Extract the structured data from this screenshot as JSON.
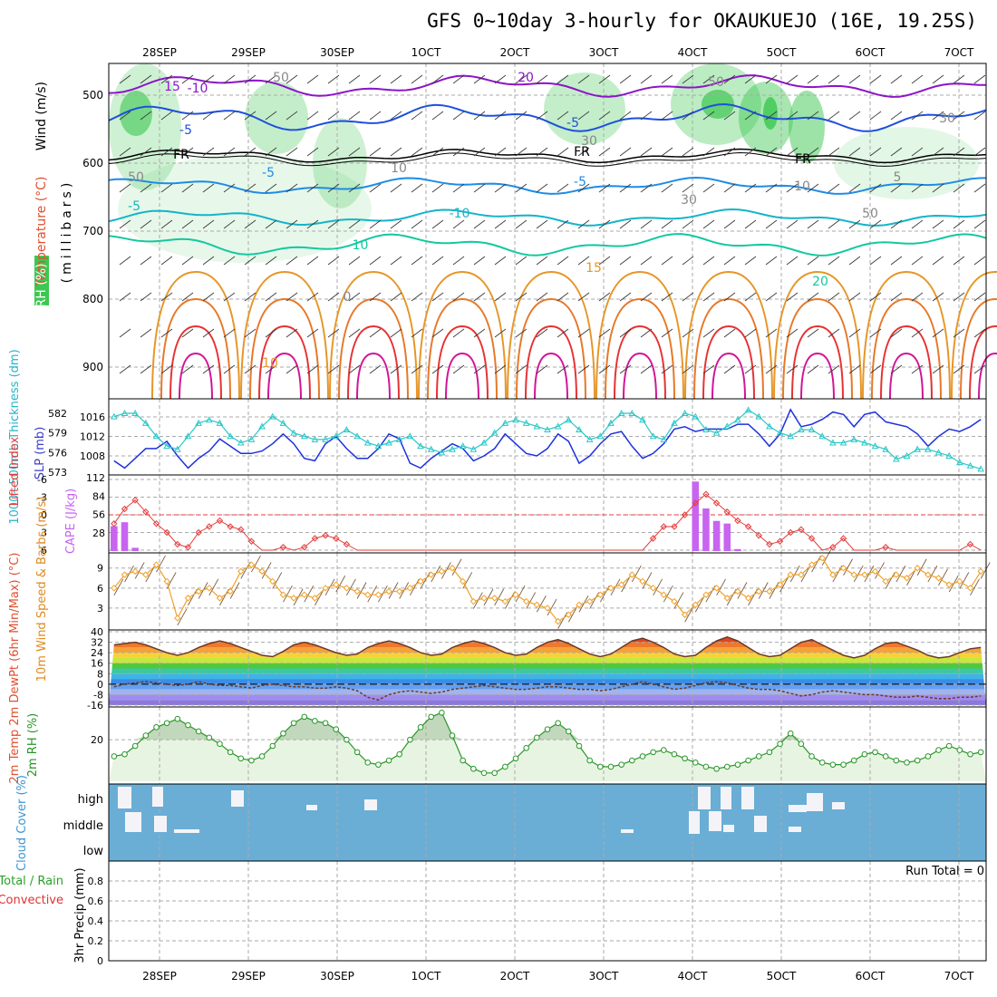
{
  "title": "GFS 0~10day 3-hourly for OKAUKUEJO (16E, 19.25S)",
  "dates": [
    "28SEP",
    "29SEP",
    "30SEP",
    "1OCT",
    "2OCT",
    "3OCT",
    "4OCT",
    "5OCT",
    "6OCT",
    "7OCT"
  ],
  "run_total": "Run Total = 0",
  "colors": {
    "rh_green": "#3cc850",
    "temp_purple": "#8c14c8",
    "temp_blue": "#1e50dc",
    "temp_cyan": "#14b4c8",
    "temp_teal": "#14c8a0",
    "temp_orange": "#e69628",
    "temp_red": "#e63232",
    "temp_magenta": "#d21496",
    "slp_blue": "#1e32dc",
    "thickness_cyan": "#28c8c8",
    "li_red": "#e63c3c",
    "cape_purple": "#c864f0",
    "wind_orange": "#f0a028",
    "rh2m_green": "#289628",
    "cloud_blue": "#6aaed6"
  },
  "chart_data": [
    {
      "panel": "upper-air cross-section",
      "type": "heatmap",
      "ylabel": "(millibars)",
      "side_labels": [
        "Wind (m/s)",
        "Temperature (°C)",
        "RH (%)"
      ],
      "yticks": [
        500,
        600,
        700,
        800,
        900
      ],
      "contour_labels": [
        "-10",
        "-5",
        "-5",
        "-5",
        "FR",
        "FR",
        "FR",
        "-5",
        "-5",
        "-10",
        "-10",
        "15",
        "10",
        "20",
        "20",
        "15",
        "10",
        "5",
        "50",
        "50",
        "30",
        "50",
        "30",
        "30",
        "10",
        "50",
        "0"
      ]
    },
    {
      "panel": "SLP and thickness",
      "type": "line",
      "ylabel_left": "1000~500mb Thickness (dm)",
      "ylabel_right": "SLP (mb)",
      "yticks_left": [
        "573",
        "576",
        "579",
        "582"
      ],
      "yticks_right": [
        "1008",
        "1012",
        "1016"
      ],
      "series": [
        {
          "name": "SLP (mb)",
          "values": [
            1007,
            1005.5,
            1007.5,
            1009.5,
            1009.5,
            1011,
            1008,
            1005.5,
            1007.5,
            1009,
            1011.5,
            1010,
            1008.5,
            1008.5,
            1009,
            1010.5,
            1012.5,
            1010.5,
            1007.5,
            1007,
            1010.5,
            1012,
            1009.5,
            1007.5,
            1007.5,
            1009.5,
            1012.5,
            1011.5,
            1006.5,
            1005.5,
            1007.5,
            1009,
            1010.5,
            1009.5,
            1007,
            1008,
            1009.5,
            1012.5,
            1010.5,
            1008.5,
            1008,
            1009.5,
            1012.5,
            1011,
            1006.5,
            1008,
            1010.5,
            1012.5,
            1013,
            1010,
            1007.5,
            1008.5,
            1010.5,
            1013.5,
            1014,
            1013,
            1013.5,
            1013.5,
            1013.5,
            1014.5,
            1014.5,
            1012.5,
            1010,
            1012.5,
            1017.5,
            1014,
            1014.5,
            1015.5,
            1017,
            1016.5,
            1014,
            1016.5,
            1017,
            1015,
            1014.5,
            1014,
            1012.5,
            1010,
            1012,
            1013.5,
            1013,
            1014,
            1015.5
          ]
        },
        {
          "name": "1000~500mb Thickness (dm)",
          "values": [
            581.5,
            582,
            582,
            580.5,
            578.5,
            577,
            576.5,
            578.5,
            580.5,
            581,
            580.5,
            578.5,
            577.5,
            578,
            580,
            581.5,
            580.5,
            579,
            578.5,
            578,
            578,
            578.5,
            579.5,
            578.5,
            577.5,
            577,
            577.5,
            578,
            578.5,
            577,
            576.5,
            576,
            576.5,
            577,
            576.5,
            577.5,
            579,
            580.5,
            581,
            580.5,
            580,
            579.5,
            580,
            581,
            579.5,
            578,
            578.5,
            580.5,
            582,
            582,
            581,
            578.5,
            578,
            580.5,
            582,
            581.5,
            579.5,
            579,
            580,
            581,
            582.5,
            581.5,
            580,
            579,
            578.5,
            579.5,
            579.5,
            578.5,
            577.5,
            577.5,
            578,
            577.5,
            577,
            576.5,
            575,
            575.5,
            576.5,
            576.5,
            576,
            575.5,
            574.5,
            574,
            573.5
          ]
        }
      ]
    },
    {
      "panel": "stability",
      "type": "bar",
      "ylabel_left": "Lifted Index",
      "ylabel_right": "CAPE (J/kg)",
      "yticks_left": [
        "-6",
        "-3",
        "0",
        "3",
        "6"
      ],
      "yticks_right": [
        "28",
        "56",
        "84",
        "112"
      ],
      "cape": [
        {
          "i": 0,
          "v": 38
        },
        {
          "i": 1,
          "v": 44
        },
        {
          "i": 2,
          "v": 5
        },
        {
          "i": 55,
          "v": 106
        },
        {
          "i": 56,
          "v": 65
        },
        {
          "i": 57,
          "v": 46
        },
        {
          "i": 58,
          "v": 42
        },
        {
          "i": 59,
          "v": 3
        }
      ],
      "lifted_index": [
        1.5,
        -1,
        -2.5,
        -0.5,
        1.5,
        3,
        5,
        5.5,
        3,
        2,
        1,
        2,
        2.5,
        4.5,
        6,
        6,
        5.5,
        6,
        5.5,
        4,
        3.5,
        4,
        5,
        6,
        6,
        6,
        6,
        6,
        6,
        6,
        6,
        6,
        6,
        6,
        6,
        6,
        6,
        6,
        6,
        6,
        6,
        6,
        6,
        6,
        6,
        6,
        6,
        6,
        6,
        6,
        6,
        4,
        2,
        2,
        0,
        -2,
        -3.5,
        -2,
        -0.5,
        1,
        2,
        3.5,
        5,
        4.5,
        3,
        2.5,
        4,
        6,
        5.5,
        4,
        6,
        6,
        6,
        5.5,
        6,
        6,
        6,
        6,
        6,
        6,
        6,
        5,
        6
      ]
    },
    {
      "panel": "10m wind",
      "type": "line",
      "ylabel": "10m Wind Speed & Barbs (m/s)",
      "yticks": [
        "3",
        "6",
        "9"
      ],
      "series": [
        {
          "name": "10m wind speed",
          "values": [
            6,
            8,
            8.5,
            8,
            9.5,
            7,
            1.5,
            4.5,
            5.5,
            6,
            4.5,
            5.5,
            8.5,
            9.5,
            8.5,
            7,
            5,
            4.5,
            5,
            4.5,
            6,
            6.5,
            6,
            5.5,
            5,
            5,
            5.5,
            5.5,
            6,
            7,
            8,
            8.5,
            9,
            7,
            4,
            4.5,
            4.5,
            4,
            5,
            4,
            3.5,
            3,
            1,
            2,
            3.5,
            4,
            5,
            6,
            6.5,
            8,
            7,
            6,
            5,
            4,
            2,
            3.5,
            5,
            6,
            4.5,
            5.5,
            4.5,
            5.5,
            5.5,
            6.5,
            8,
            8,
            9.5,
            10.5,
            8,
            9,
            8,
            8,
            8.5,
            7,
            8,
            7.5,
            9,
            8,
            7.5,
            6.5,
            7,
            6,
            8.5
          ]
        }
      ]
    },
    {
      "panel": "2m temperature",
      "type": "area",
      "ylabel": "2m Temp 2m DewPt (6hr Min/Max) (°C)",
      "yticks": [
        "-16",
        "-8",
        "0",
        "8",
        "16",
        "24",
        "32",
        "40"
      ],
      "series": [
        {
          "name": "2m Temp",
          "values": [
            30,
            31,
            32,
            30,
            27,
            24,
            22,
            24,
            28,
            31,
            33,
            31,
            28,
            25,
            22,
            21,
            25,
            30,
            32,
            30,
            27,
            24,
            22,
            23,
            28,
            31,
            33,
            31,
            28,
            24,
            22,
            23,
            28,
            31,
            33,
            31,
            28,
            24,
            22,
            23,
            28,
            32,
            34,
            31,
            27,
            23,
            21,
            23,
            28,
            33,
            35,
            32,
            28,
            23,
            21,
            22,
            28,
            33,
            36,
            33,
            28,
            23,
            21,
            22,
            27,
            32,
            34,
            30,
            26,
            22,
            20,
            22,
            27,
            31,
            32,
            29,
            26,
            22,
            20,
            21,
            24,
            27,
            28
          ]
        },
        {
          "name": "2m DewPt",
          "values": [
            -2,
            0,
            1,
            2,
            1,
            0,
            -1,
            0,
            2,
            0,
            -1,
            -1,
            -2,
            -3,
            -1,
            0,
            -1,
            -2,
            -2,
            -3,
            -3,
            -2,
            -3,
            -5,
            -10,
            -12,
            -8,
            -6,
            -5,
            -6,
            -7,
            -6,
            -4,
            -3,
            -2,
            -1,
            -2,
            -3,
            -4,
            -4,
            -3,
            -2,
            -2,
            -3,
            -4,
            -4,
            -5,
            -4,
            -2,
            0,
            2,
            0,
            -2,
            -4,
            -3,
            -1,
            1,
            2,
            1,
            -1,
            -3,
            -4,
            -4,
            -5,
            -7,
            -9,
            -8,
            -6,
            -5,
            -6,
            -7,
            -8,
            -8,
            -9,
            -10,
            -10,
            -9,
            -10,
            -11,
            -11,
            -10,
            -10,
            -9
          ]
        }
      ]
    },
    {
      "panel": "2m RH",
      "type": "area",
      "ylabel": "2m RH (%)",
      "yticks": [
        "20"
      ],
      "series": [
        {
          "name": "2m RH",
          "values": [
            12,
            13,
            17,
            22,
            26,
            28,
            30,
            27,
            24,
            21,
            18,
            14,
            11,
            10,
            12,
            17,
            23,
            28,
            31,
            29,
            28,
            25,
            20,
            14,
            9,
            8,
            10,
            13,
            20,
            26,
            31,
            33,
            22,
            10,
            6,
            4,
            4,
            7,
            11,
            16,
            21,
            25,
            28,
            24,
            17,
            10,
            7,
            7,
            8,
            10,
            12,
            14,
            15,
            13,
            11,
            9,
            7,
            6,
            7,
            8,
            10,
            12,
            14,
            18,
            23,
            18,
            12,
            9,
            8,
            8,
            10,
            13,
            14,
            12,
            10,
            9,
            10,
            12,
            15,
            17,
            15,
            13,
            14
          ]
        }
      ]
    },
    {
      "panel": "cloud cover",
      "type": "bar",
      "ylabel": "Cloud Cover (%)",
      "levels": [
        "high",
        "middle",
        "low"
      ]
    },
    {
      "panel": "precipitation",
      "type": "bar",
      "ylabel": "3hr Precip (mm)",
      "side_labels": [
        "Total / Rain",
        "Convective"
      ],
      "yticks": [
        "0",
        "0.2",
        "0.4",
        "0.6",
        "0.8"
      ],
      "values": []
    }
  ]
}
